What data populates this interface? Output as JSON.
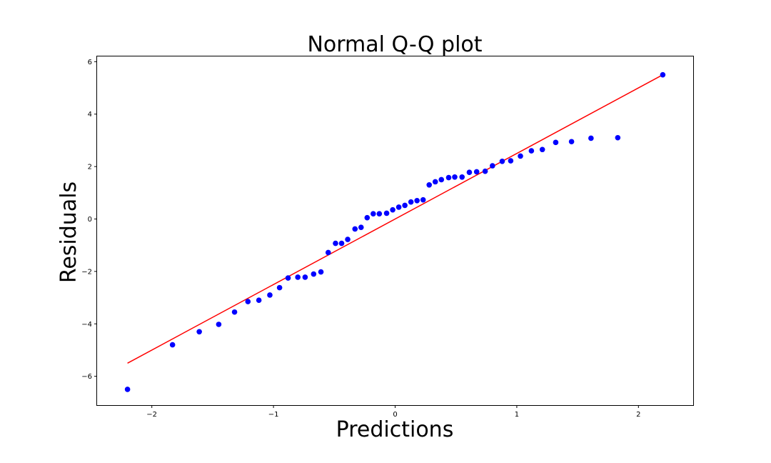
{
  "chart_data": {
    "type": "scatter",
    "title": "Normal Q-Q plot",
    "xlabel": "Predictions",
    "ylabel": "Residuals",
    "xlim": [
      -2.45,
      2.45
    ],
    "ylim": [
      -7.1,
      6.2
    ],
    "xticks": [
      -2,
      -1,
      0,
      1,
      2
    ],
    "xtick_labels": [
      "−2",
      "−1",
      "0",
      "1",
      "2"
    ],
    "yticks": [
      -6,
      -4,
      -2,
      0,
      2,
      4,
      6
    ],
    "ytick_labels": [
      "−6",
      "−4",
      "−2",
      "0",
      "2",
      "4",
      "6"
    ],
    "grid": false,
    "point_color": "#0000ff",
    "line_color": "#ff0000",
    "reference_line": {
      "x": [
        -2.2,
        2.2
      ],
      "y": [
        -5.5,
        5.5
      ]
    },
    "points": {
      "x": [
        -2.2,
        -1.83,
        -1.61,
        -1.45,
        -1.32,
        -1.21,
        -1.12,
        -1.03,
        -0.95,
        -0.88,
        -0.8,
        -0.74,
        -0.67,
        -0.61,
        -0.55,
        -0.49,
        -0.44,
        -0.39,
        -0.33,
        -0.28,
        -0.23,
        -0.18,
        -0.13,
        -0.07,
        -0.02,
        0.03,
        0.08,
        0.13,
        0.18,
        0.23,
        0.28,
        0.33,
        0.38,
        0.44,
        0.49,
        0.55,
        0.61,
        0.67,
        0.74,
        0.8,
        0.88,
        0.95,
        1.03,
        1.12,
        1.21,
        1.32,
        1.45,
        1.61,
        1.83,
        2.2
      ],
      "y": [
        -6.5,
        -4.8,
        -4.3,
        -4.02,
        -3.55,
        -3.15,
        -3.1,
        -2.9,
        -2.62,
        -2.25,
        -2.22,
        -2.22,
        -2.1,
        -2.02,
        -1.28,
        -0.93,
        -0.93,
        -0.78,
        -0.38,
        -0.32,
        0.05,
        0.2,
        0.2,
        0.22,
        0.35,
        0.45,
        0.52,
        0.65,
        0.7,
        0.73,
        1.3,
        1.42,
        1.5,
        1.58,
        1.6,
        1.6,
        1.78,
        1.8,
        1.82,
        2.03,
        2.2,
        2.22,
        2.4,
        2.6,
        2.65,
        2.92,
        2.95,
        3.08,
        3.1,
        5.5
      ]
    }
  }
}
